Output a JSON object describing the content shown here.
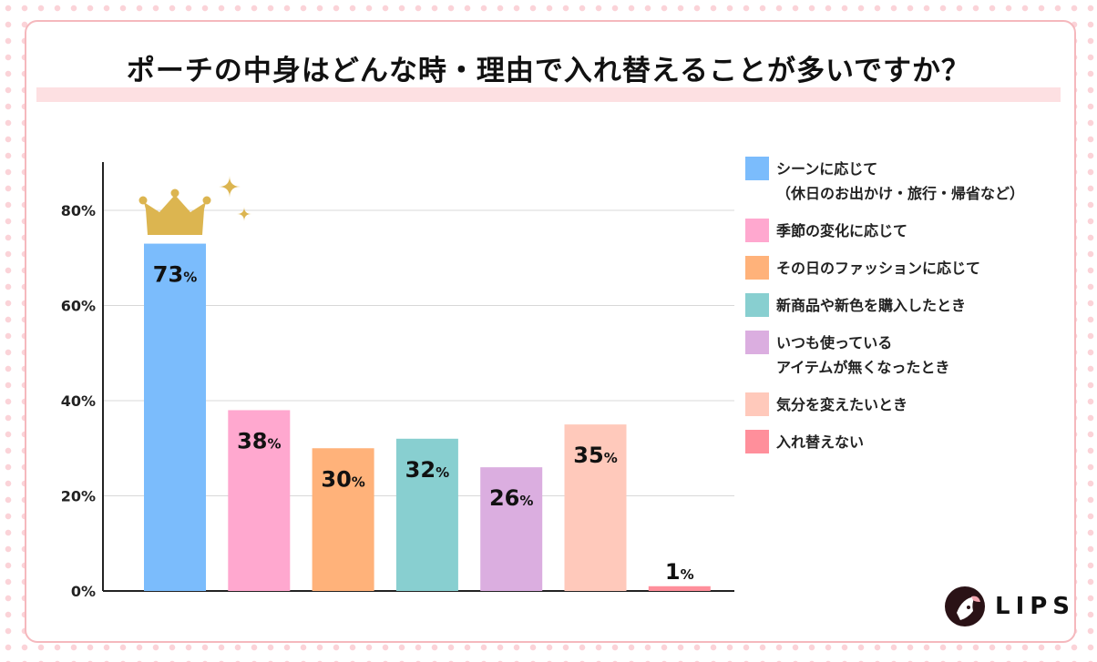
{
  "chart_data": {
    "type": "bar",
    "title": "ポーチの中身はどんな時・理由で入れ替えることが多いですか？",
    "categories": [
      "シーンに応じて\n（休日のお出かけ・旅行・帰省など）",
      "季節の変化に応じて",
      "その日のファッションに応じて",
      "新商品や新色を購入したとき",
      "いつも使っている\nアイテムが無くなったとき",
      "気分を変えたいとき",
      "入れ替えない"
    ],
    "values": [
      73,
      38,
      30,
      32,
      26,
      35,
      1
    ],
    "value_labels": [
      "73",
      "38",
      "30",
      "32",
      "26",
      "35",
      "1"
    ],
    "unit": "%",
    "colors": [
      "#7bbcfc",
      "#ffa8cf",
      "#ffb27a",
      "#88cfd0",
      "#dbaee0",
      "#ffc9bb",
      "#ff8f9b"
    ],
    "ylim": [
      0,
      90
    ],
    "yticks": [
      0,
      20,
      40,
      60,
      80
    ],
    "ytick_labels": [
      "0%",
      "20%",
      "40%",
      "60%",
      "80%"
    ],
    "grid": true,
    "legend": "right",
    "highlight": "crown-icon on top bar"
  },
  "brand": "LIPS"
}
